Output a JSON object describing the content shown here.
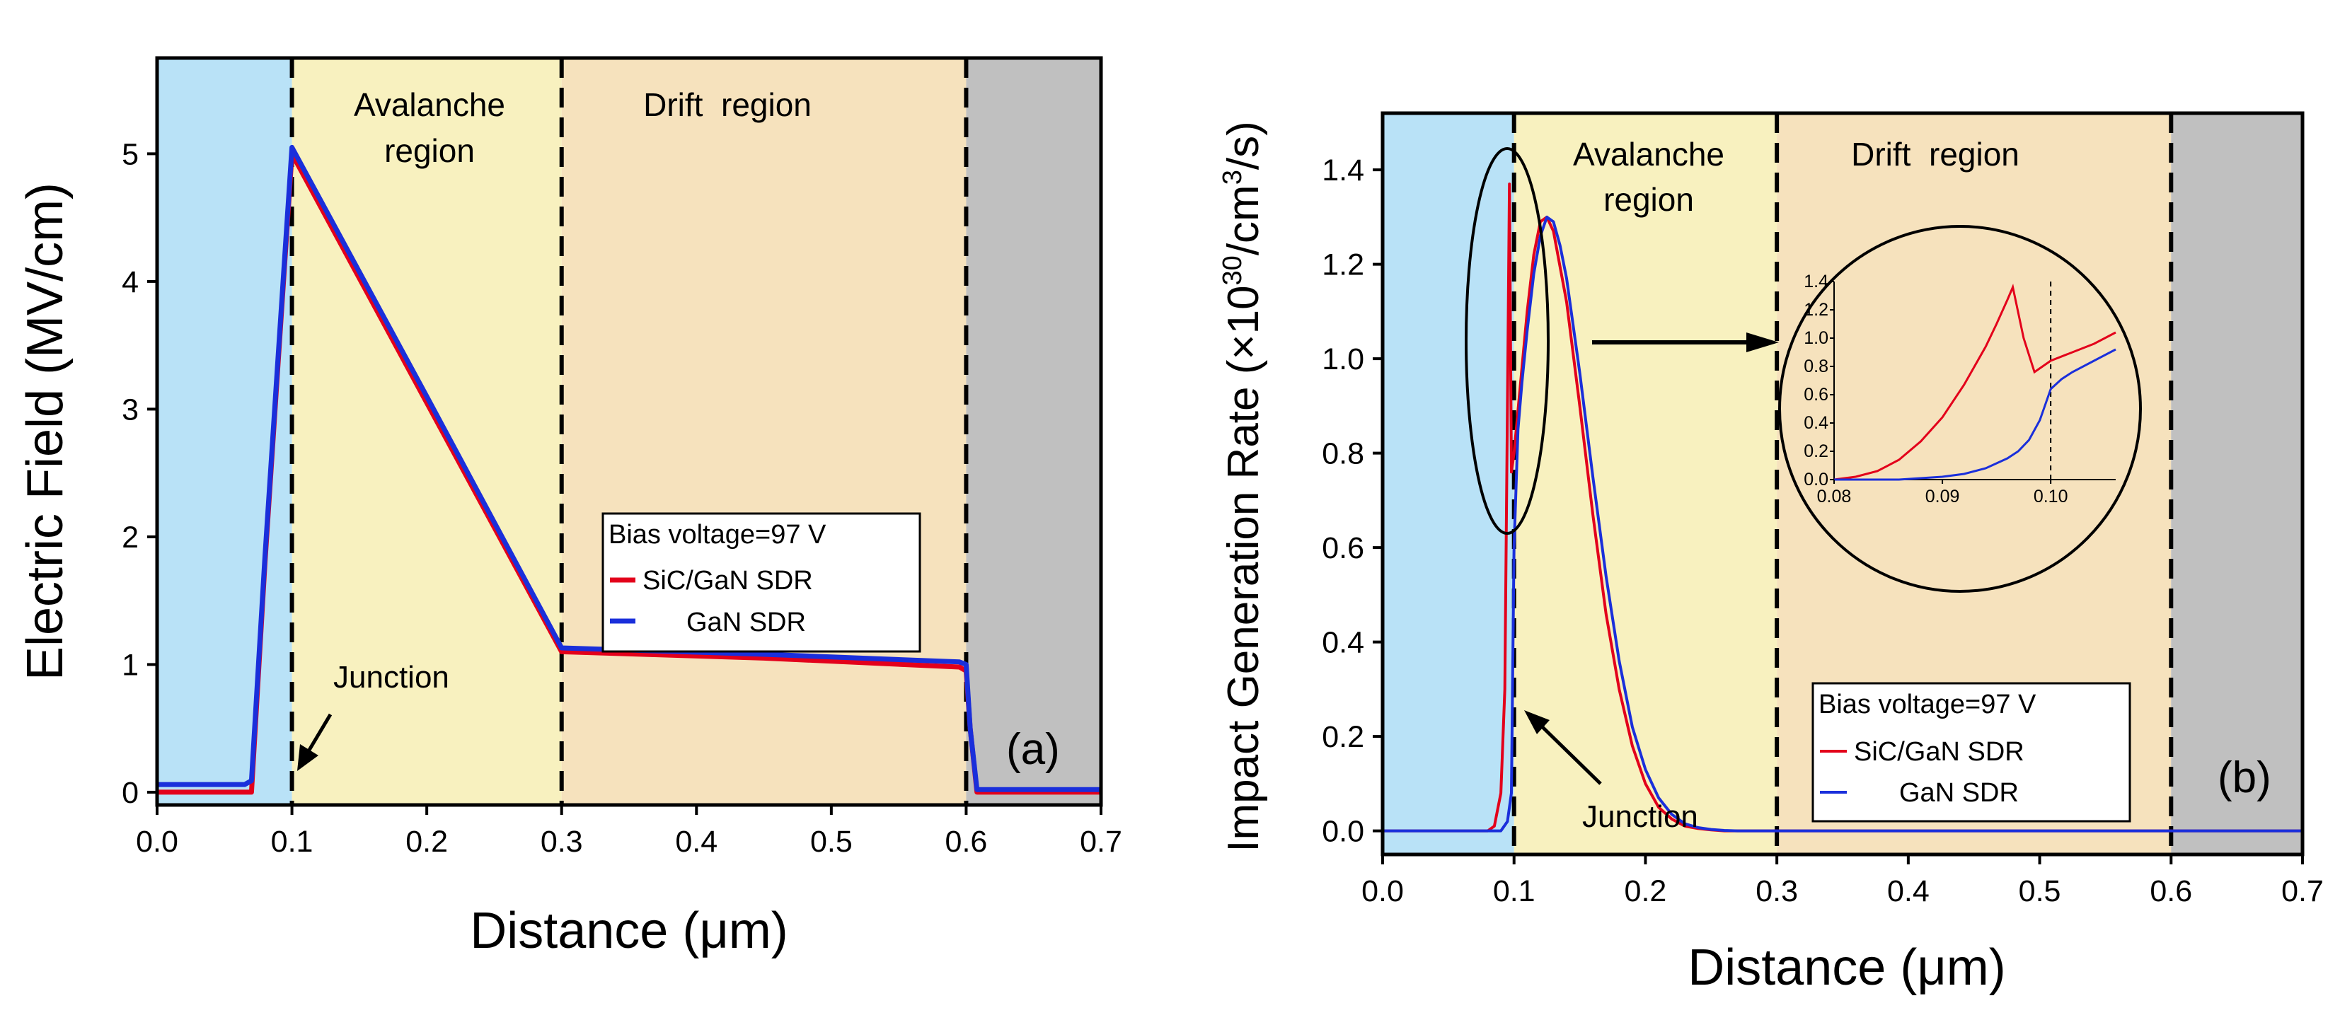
{
  "colors": {
    "left_region": "#b9e2f7",
    "avalanche_region": "#f8f1bf",
    "drift_region": "#f6e2bd",
    "right_region": "#c0c0c0",
    "sic_gan": "#e3001b",
    "gan": "#1a2fdb"
  },
  "chart_data": [
    {
      "type": "line",
      "panel": "(a)",
      "xlabel": "Distance (μm)",
      "ylabel": "Electric Field (MV/cm)",
      "xlim": [
        0,
        0.7
      ],
      "ylim": [
        -0.1,
        5.75
      ],
      "xticks": [
        0.0,
        0.1,
        0.2,
        0.3,
        0.4,
        0.5,
        0.6,
        0.7
      ],
      "xtick_labels": [
        "0.0",
        "0.1",
        "0.2",
        "0.3",
        "0.4",
        "0.5",
        "0.6",
        "0.7"
      ],
      "yticks": [
        0,
        1,
        2,
        3,
        4,
        5
      ],
      "ytick_labels": [
        "0",
        "1",
        "2",
        "3",
        "4",
        "5"
      ],
      "regions": [
        {
          "x": [
            0.0,
            0.1
          ],
          "color_key": "left_region",
          "label": ""
        },
        {
          "x": [
            0.1,
            0.3
          ],
          "color_key": "avalanche_region",
          "label": [
            "Avalanche",
            "region"
          ]
        },
        {
          "x": [
            0.3,
            0.6
          ],
          "color_key": "drift_region",
          "label": [
            "Drift  region"
          ]
        },
        {
          "x": [
            0.6,
            0.7
          ],
          "color_key": "right_region",
          "label": ""
        }
      ],
      "boundaries": [
        0.1,
        0.3,
        0.6
      ],
      "legend": {
        "title": "Bias voltage=97 V",
        "placement": "center-right",
        "entries": [
          "SiC/GaN SDR",
          "GaN SDR"
        ]
      },
      "annotations": [
        "Junction"
      ],
      "series": [
        {
          "name": "SiC/GaN SDR",
          "color_key": "sic_gan",
          "x": [
            0.0,
            0.066,
            0.07,
            0.08,
            0.09,
            0.1,
            0.2,
            0.3,
            0.45,
            0.595,
            0.6,
            0.603,
            0.608,
            0.7
          ],
          "y": [
            0.0,
            0.0,
            0.0,
            1.8,
            3.4,
            5.0,
            3.05,
            1.1,
            1.05,
            0.98,
            0.95,
            0.5,
            0.0,
            0.0
          ]
        },
        {
          "name": "GaN SDR",
          "color_key": "gan",
          "x": [
            0.0,
            0.065,
            0.07,
            0.08,
            0.09,
            0.1,
            0.2,
            0.3,
            0.45,
            0.595,
            0.6,
            0.603,
            0.608,
            0.7
          ],
          "y": [
            0.06,
            0.06,
            0.09,
            1.85,
            3.45,
            5.05,
            3.1,
            1.13,
            1.08,
            1.02,
            1.0,
            0.5,
            0.02,
            0.02
          ]
        }
      ]
    },
    {
      "type": "line",
      "panel": "(b)",
      "xlabel": "Distance (μm)",
      "ylabel": "Impact Generation Rate (×10",
      "ylabel_sup": "30",
      "ylabel_mid": "/cm",
      "ylabel_sup2": "3",
      "ylabel_end": "/s)",
      "xlim": [
        0,
        0.7
      ],
      "ylim": [
        -0.05,
        1.52
      ],
      "xticks": [
        0.0,
        0.1,
        0.2,
        0.3,
        0.4,
        0.5,
        0.6,
        0.7
      ],
      "xtick_labels": [
        "0.0",
        "0.1",
        "0.2",
        "0.3",
        "0.4",
        "0.5",
        "0.6",
        "0.7"
      ],
      "yticks": [
        0.0,
        0.2,
        0.4,
        0.6,
        0.8,
        1.0,
        1.2,
        1.4
      ],
      "ytick_labels": [
        "0.0",
        "0.2",
        "0.4",
        "0.6",
        "0.8",
        "1.0",
        "1.2",
        "1.4"
      ],
      "regions": [
        {
          "x": [
            0.0,
            0.1
          ],
          "color_key": "left_region",
          "label": ""
        },
        {
          "x": [
            0.1,
            0.3
          ],
          "color_key": "avalanche_region",
          "label": [
            "Avalanche",
            "region"
          ]
        },
        {
          "x": [
            0.3,
            0.6
          ],
          "color_key": "drift_region",
          "label": [
            "Drift  region"
          ]
        },
        {
          "x": [
            0.6,
            0.7
          ],
          "color_key": "right_region",
          "label": ""
        }
      ],
      "boundaries": [
        0.1,
        0.3,
        0.6
      ],
      "legend": {
        "title": "Bias voltage=97 V",
        "placement": "lower-right",
        "entries": [
          "SiC/GaN SDR",
          "GaN SDR"
        ]
      },
      "annotations": [
        "Junction"
      ],
      "series": [
        {
          "name": "SiC/GaN SDR",
          "color_key": "sic_gan",
          "x": [
            0.0,
            0.08,
            0.085,
            0.09,
            0.093,
            0.095,
            0.0965,
            0.098,
            0.1,
            0.105,
            0.11,
            0.115,
            0.12,
            0.125,
            0.13,
            0.14,
            0.15,
            0.16,
            0.17,
            0.18,
            0.19,
            0.2,
            0.21,
            0.22,
            0.23,
            0.24,
            0.25,
            0.26,
            0.27,
            0.3,
            0.5,
            0.7
          ],
          "y": [
            0.0,
            0.0,
            0.01,
            0.08,
            0.3,
            0.9,
            1.37,
            0.76,
            0.8,
            0.95,
            1.1,
            1.22,
            1.29,
            1.3,
            1.27,
            1.12,
            0.9,
            0.67,
            0.46,
            0.3,
            0.18,
            0.1,
            0.05,
            0.025,
            0.01,
            0.005,
            0.002,
            0.0,
            0.0,
            0.0,
            0.0,
            0.0
          ]
        },
        {
          "name": "GaN SDR",
          "color_key": "gan",
          "x": [
            0.0,
            0.09,
            0.095,
            0.098,
            0.1,
            0.103,
            0.106,
            0.11,
            0.115,
            0.12,
            0.125,
            0.13,
            0.135,
            0.14,
            0.15,
            0.16,
            0.17,
            0.18,
            0.19,
            0.2,
            0.21,
            0.22,
            0.23,
            0.24,
            0.25,
            0.26,
            0.27,
            0.3,
            0.5,
            0.7
          ],
          "y": [
            0.0,
            0.0,
            0.02,
            0.08,
            0.6,
            0.85,
            0.95,
            1.06,
            1.18,
            1.26,
            1.3,
            1.29,
            1.24,
            1.17,
            0.97,
            0.75,
            0.54,
            0.36,
            0.22,
            0.13,
            0.07,
            0.035,
            0.015,
            0.007,
            0.003,
            0.001,
            0.0,
            0.0,
            0.0,
            0.0
          ]
        }
      ],
      "inset": {
        "xlim": [
          0.08,
          0.106
        ],
        "ylim": [
          0.0,
          1.4
        ],
        "xticks": [
          0.08,
          0.09,
          0.1
        ],
        "xtick_labels": [
          "0.08",
          "0.09",
          "0.10"
        ],
        "yticks": [
          0.0,
          0.2,
          0.4,
          0.6,
          0.8,
          1.0,
          1.2,
          1.4
        ],
        "ytick_labels": [
          "0.0",
          "0.2",
          "0.4",
          "0.6",
          "0.8",
          "1.0",
          "1.2",
          "1.4"
        ],
        "boundary": 0.1,
        "series": [
          {
            "name": "SiC/GaN SDR",
            "color_key": "sic_gan",
            "x": [
              0.08,
              0.082,
              0.084,
              0.086,
              0.088,
              0.09,
              0.092,
              0.094,
              0.095,
              0.096,
              0.0965,
              0.0975,
              0.0985,
              0.1,
              0.102,
              0.104,
              0.106
            ],
            "y": [
              0.0,
              0.02,
              0.06,
              0.14,
              0.27,
              0.44,
              0.67,
              0.94,
              1.1,
              1.27,
              1.36,
              1.0,
              0.76,
              0.84,
              0.9,
              0.96,
              1.04
            ]
          },
          {
            "name": "GaN SDR",
            "color_key": "gan",
            "x": [
              0.08,
              0.086,
              0.09,
              0.092,
              0.094,
              0.096,
              0.097,
              0.098,
              0.099,
              0.1,
              0.101,
              0.102,
              0.104,
              0.106
            ],
            "y": [
              0.0,
              0.0,
              0.02,
              0.04,
              0.08,
              0.15,
              0.2,
              0.28,
              0.42,
              0.64,
              0.71,
              0.76,
              0.84,
              0.92
            ]
          }
        ]
      }
    }
  ]
}
